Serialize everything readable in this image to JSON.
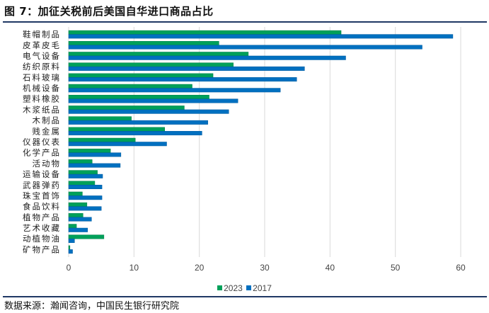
{
  "title": "图 7：加征关税前后美国自华进口商品占比",
  "source": "数据来源：瀚闻咨询，中国民生银行研究院",
  "chart_data": {
    "type": "bar",
    "orientation": "horizontal",
    "categories": [
      "鞋帽制品",
      "皮革皮毛",
      "电气设备",
      "纺织原料",
      "石料玻璃",
      "机械设备",
      "塑料橡胶",
      "木浆纸品",
      "木制品",
      "贱金属",
      "仪器仪表",
      "化学产品",
      "活动物",
      "运输设备",
      "武器弹药",
      "珠宝首饰",
      "食品饮料",
      "植物产品",
      "艺术收藏",
      "动植物油",
      "矿物产品"
    ],
    "series": [
      {
        "name": "2023",
        "color": "#00a05a",
        "values": [
          41.7,
          23.0,
          27.5,
          25.2,
          22.1,
          18.9,
          21.5,
          17.7,
          9.6,
          14.7,
          10.2,
          6.4,
          3.6,
          4.4,
          4.0,
          2.1,
          2.8,
          2.2,
          1.2,
          5.4,
          0.2
        ]
      },
      {
        "name": "2017",
        "color": "#0070c0",
        "values": [
          58.8,
          54.1,
          42.4,
          36.1,
          34.9,
          32.4,
          25.9,
          24.5,
          21.3,
          20.4,
          15.0,
          8.0,
          7.9,
          5.2,
          5.1,
          5.1,
          5.0,
          3.5,
          2.9,
          0.9,
          0.6
        ]
      }
    ],
    "xlim": [
      0,
      60
    ],
    "xticks": [
      "0",
      "10",
      "20",
      "30",
      "40",
      "50",
      "60"
    ],
    "grid": true,
    "legend": "bottom"
  }
}
